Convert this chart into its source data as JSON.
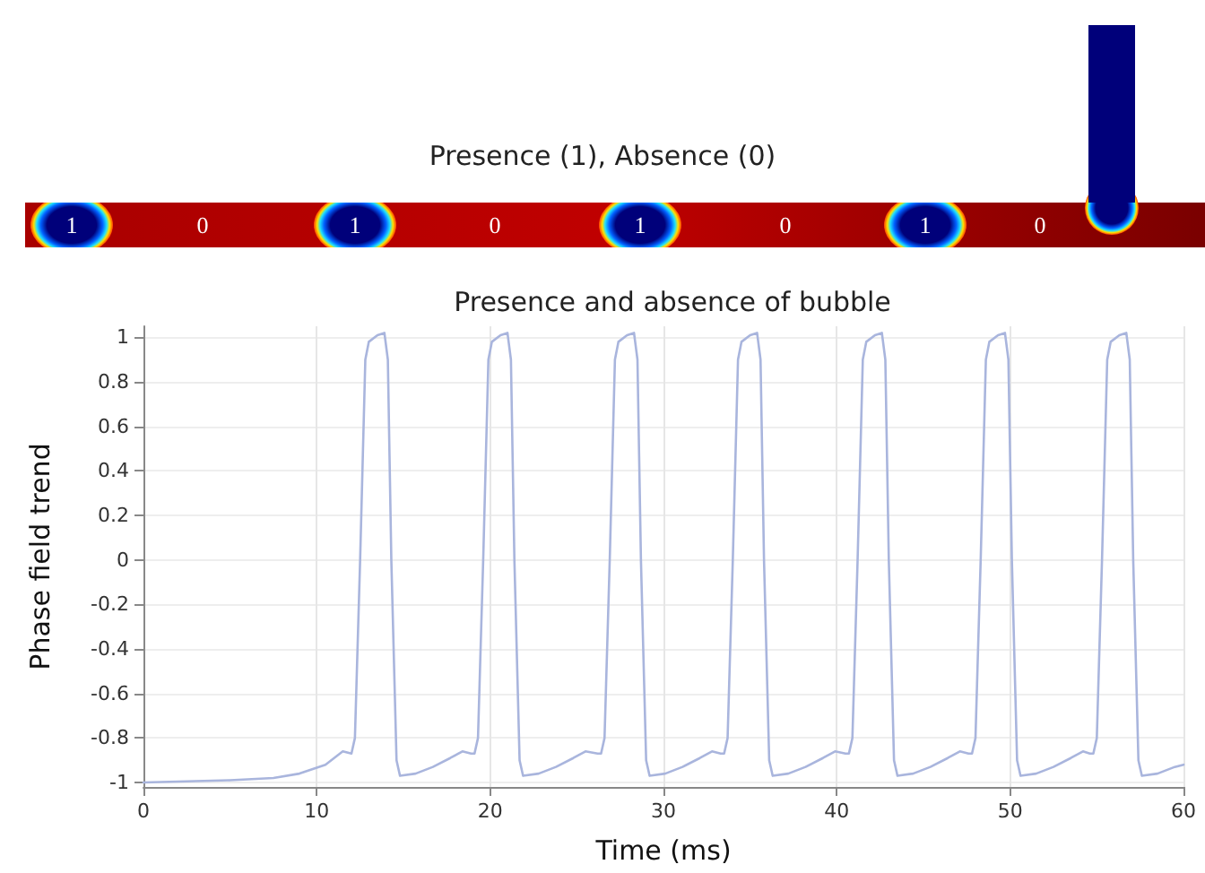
{
  "chart_data": {
    "type": "line",
    "title": "Presence and absence of bubble",
    "xlabel": "Time (ms)",
    "ylabel": "Phase field trend",
    "annotations": [
      "Presence (1), Absence (0)",
      "1",
      "0",
      "1",
      "0",
      "1",
      "0",
      "1",
      "0"
    ],
    "xlim": [
      0,
      60
    ],
    "xticks": [
      0,
      10,
      20,
      30,
      40,
      50,
      60
    ],
    "ylim": [
      -1.02,
      1.05
    ],
    "yticks": [
      -1,
      -0.8,
      -0.6,
      -0.4,
      -0.2,
      0,
      0.2,
      0.4,
      0.6,
      0.8,
      1
    ],
    "grid": true,
    "marker": "none",
    "line_style": "solid",
    "series": [
      {
        "color": "#a9b5dd",
        "x": [
          0,
          5,
          7.5,
          9,
          10.5,
          11.5,
          12.0,
          12.2,
          12.5,
          12.8,
          13.0,
          13.5,
          13.9,
          14.1,
          14.3,
          14.6,
          14.8,
          15.7,
          16.7,
          17.7,
          18.4,
          18.9,
          19.1,
          19.3,
          19.6,
          19.9,
          20.1,
          20.6,
          21.0,
          21.2,
          21.4,
          21.7,
          21.9,
          22.8,
          23.8,
          24.8,
          25.5,
          26.2,
          26.4,
          26.6,
          26.9,
          27.2,
          27.4,
          27.9,
          28.3,
          28.5,
          28.7,
          29.0,
          29.2,
          30.1,
          31.1,
          32.1,
          32.8,
          33.3,
          33.5,
          33.7,
          34.0,
          34.3,
          34.5,
          35.0,
          35.4,
          35.6,
          35.8,
          36.1,
          36.3,
          37.2,
          38.2,
          39.2,
          39.9,
          40.5,
          40.7,
          40.9,
          41.2,
          41.5,
          41.7,
          42.2,
          42.6,
          42.8,
          43.0,
          43.3,
          43.5,
          44.4,
          45.4,
          46.4,
          47.1,
          47.6,
          47.8,
          48.0,
          48.3,
          48.6,
          48.8,
          49.3,
          49.7,
          49.9,
          50.1,
          50.4,
          50.6,
          51.5,
          52.5,
          53.5,
          54.2,
          54.6,
          54.8,
          55.0,
          55.3,
          55.6,
          55.8,
          56.3,
          56.7,
          56.9,
          57.1,
          57.4,
          57.6,
          58.5,
          59.5,
          60
        ],
        "values": [
          -1,
          -0.99,
          -0.98,
          -0.96,
          -0.92,
          -0.86,
          -0.87,
          -0.8,
          0,
          0.9,
          0.98,
          1.01,
          1.02,
          0.9,
          0,
          -0.9,
          -0.97,
          -0.96,
          -0.93,
          -0.89,
          -0.86,
          -0.87,
          -0.87,
          -0.8,
          0,
          0.9,
          0.98,
          1.01,
          1.02,
          0.9,
          0,
          -0.9,
          -0.97,
          -0.96,
          -0.93,
          -0.89,
          -0.86,
          -0.87,
          -0.87,
          -0.8,
          0,
          0.9,
          0.98,
          1.01,
          1.02,
          0.9,
          0,
          -0.9,
          -0.97,
          -0.96,
          -0.93,
          -0.89,
          -0.86,
          -0.87,
          -0.87,
          -0.8,
          0,
          0.9,
          0.98,
          1.01,
          1.02,
          0.9,
          0,
          -0.9,
          -0.97,
          -0.96,
          -0.93,
          -0.89,
          -0.86,
          -0.87,
          -0.87,
          -0.8,
          0,
          0.9,
          0.98,
          1.01,
          1.02,
          0.9,
          0,
          -0.9,
          -0.97,
          -0.96,
          -0.93,
          -0.89,
          -0.86,
          -0.87,
          -0.87,
          -0.8,
          0,
          0.9,
          0.98,
          1.01,
          1.02,
          0.9,
          0,
          -0.9,
          -0.97,
          -0.96,
          -0.93,
          -0.89,
          -0.86,
          -0.87,
          -0.87,
          -0.8,
          0,
          0.9,
          0.98,
          1.01,
          1.02,
          0.9,
          0,
          -0.9,
          -0.97,
          -0.96,
          -0.93,
          -0.92
        ]
      }
    ]
  }
}
